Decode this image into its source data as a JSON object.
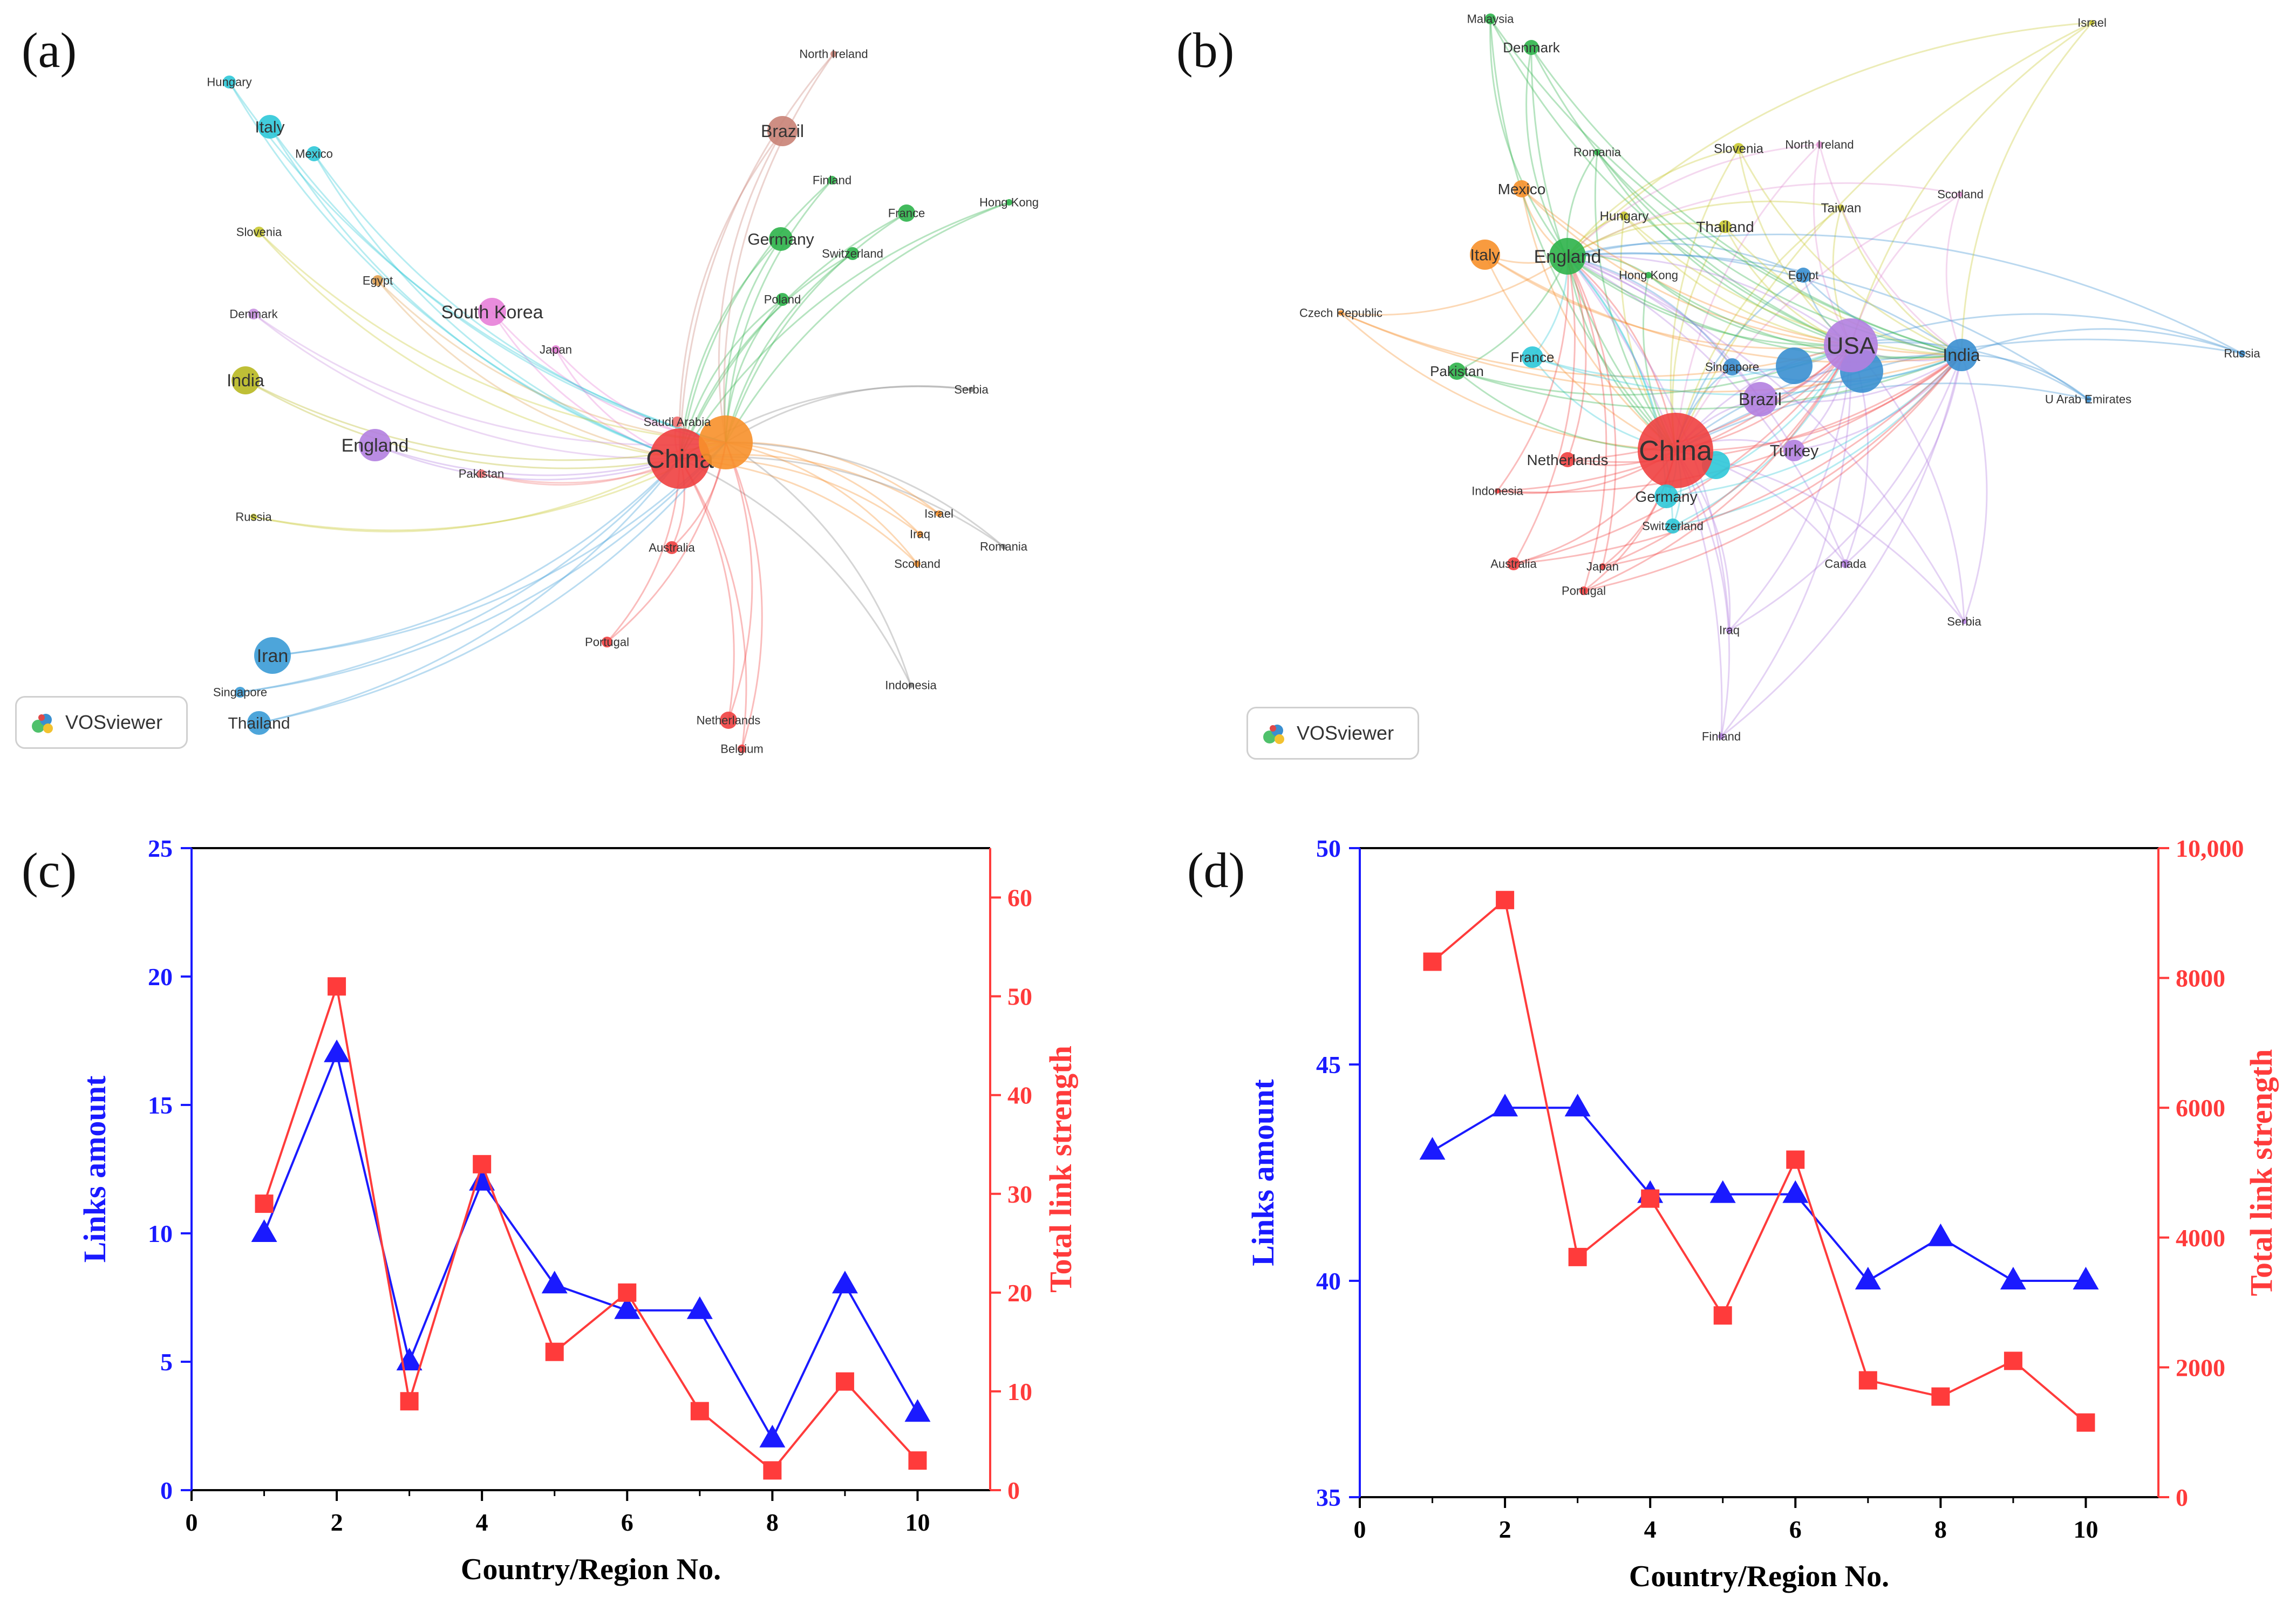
{
  "panels": {
    "a": {
      "label": "(a)"
    },
    "b": {
      "label": "(b)"
    },
    "c": {
      "label": "(c)"
    },
    "d": {
      "label": "(d)"
    }
  },
  "vosviewer_badge": "VOSviewer",
  "network_a": {
    "nodes": [
      {
        "label": "China",
        "color": "#f04040",
        "big": true
      },
      {
        "label": "",
        "color": "#f7902a",
        "big": true
      },
      {
        "label": "South Korea",
        "color": "#e77fd8"
      },
      {
        "label": "England",
        "color": "#b27fe0"
      },
      {
        "label": "India",
        "color": "#b8b820"
      },
      {
        "label": "Iran",
        "color": "#3a9bd6"
      },
      {
        "label": "Thailand",
        "color": "#3a9bd6"
      },
      {
        "label": "Brazil",
        "color": "#c98275"
      },
      {
        "label": "Germany",
        "color": "#2db24a"
      },
      {
        "label": "Italy",
        "color": "#2ec8d8"
      },
      {
        "label": "Mexico",
        "color": "#2ec8d8"
      },
      {
        "label": "Hungary",
        "color": "#2ec8d8"
      },
      {
        "label": "Slovenia",
        "color": "#c8c830"
      },
      {
        "label": "Denmark",
        "color": "#c890e0"
      },
      {
        "label": "Egypt",
        "color": "#e0a050"
      },
      {
        "label": "Russia",
        "color": "#c8c830"
      },
      {
        "label": "Singapore",
        "color": "#3a9bd6"
      },
      {
        "label": "Pakistan",
        "color": "#f07070"
      },
      {
        "label": "Japan",
        "color": "#e77fd8"
      },
      {
        "label": "Saudi Arabia",
        "color": "#f07070"
      },
      {
        "label": "Australia",
        "color": "#f04040"
      },
      {
        "label": "Portugal",
        "color": "#f04040"
      },
      {
        "label": "Netherlands",
        "color": "#f04040"
      },
      {
        "label": "Belgium",
        "color": "#f04040"
      },
      {
        "label": "North Ireland",
        "color": "#c98275"
      },
      {
        "label": "Finland",
        "color": "#2db24a"
      },
      {
        "label": "France",
        "color": "#2db24a"
      },
      {
        "label": "Switzerland",
        "color": "#2db24a"
      },
      {
        "label": "Poland",
        "color": "#2db24a"
      },
      {
        "label": "Hong Kong",
        "color": "#2db24a"
      },
      {
        "label": "Serbia",
        "color": "#888888"
      },
      {
        "label": "Israel",
        "color": "#f7902a"
      },
      {
        "label": "Iraq",
        "color": "#f7902a"
      },
      {
        "label": "Scotland",
        "color": "#f7902a"
      },
      {
        "label": "Romania",
        "color": "#888888"
      },
      {
        "label": "Indonesia",
        "color": "#888888"
      }
    ]
  },
  "network_b": {
    "nodes": [
      {
        "label": "China",
        "color": "#f04040",
        "big": true
      },
      {
        "label": "USA",
        "color": "#b27fe0",
        "big": true
      },
      {
        "label": "England",
        "color": "#2db24a"
      },
      {
        "label": "India",
        "color": "#3a8fd0"
      },
      {
        "label": "Brazil",
        "color": "#b27fe0"
      },
      {
        "label": "Italy",
        "color": "#f7902a"
      },
      {
        "label": "Mexico",
        "color": "#f7902a"
      },
      {
        "label": "Malaysia",
        "color": "#2db24a"
      },
      {
        "label": "Denmark",
        "color": "#2db24a"
      },
      {
        "label": "Israel",
        "color": "#c8c830"
      },
      {
        "label": "Romania",
        "color": "#2db24a"
      },
      {
        "label": "Slovenia",
        "color": "#c8c830"
      },
      {
        "label": "North Ireland",
        "color": "#e090d0"
      },
      {
        "label": "Scotland",
        "color": "#e090d0"
      },
      {
        "label": "Hungary",
        "color": "#c8c830"
      },
      {
        "label": "Thailand",
        "color": "#c8c830"
      },
      {
        "label": "Taiwan",
        "color": "#c8c830"
      },
      {
        "label": "Hong Kong",
        "color": "#2db24a"
      },
      {
        "label": "Egypt",
        "color": "#3a8fd0"
      },
      {
        "label": "Czech Republic",
        "color": "#f7902a"
      },
      {
        "label": "Pakistan",
        "color": "#2db24a"
      },
      {
        "label": "France",
        "color": "#2ec8d8"
      },
      {
        "label": "Singapore",
        "color": "#3a8fd0"
      },
      {
        "label": "Russia",
        "color": "#3a8fd0"
      },
      {
        "label": "U Arab Emirates",
        "color": "#3a8fd0"
      },
      {
        "label": "Turkey",
        "color": "#b27fe0"
      },
      {
        "label": "Netherlands",
        "color": "#f04040"
      },
      {
        "label": "Indonesia",
        "color": "#f04040"
      },
      {
        "label": "Germany",
        "color": "#2ec8d8"
      },
      {
        "label": "Switzerland",
        "color": "#2ec8d8"
      },
      {
        "label": "Australia",
        "color": "#f04040"
      },
      {
        "label": "Japan",
        "color": "#f04040"
      },
      {
        "label": "Portugal",
        "color": "#f04040"
      },
      {
        "label": "Canada",
        "color": "#b27fe0"
      },
      {
        "label": "Iraq",
        "color": "#b27fe0"
      },
      {
        "label": "Serbia",
        "color": "#b27fe0"
      },
      {
        "label": "Finland",
        "color": "#b27fe0"
      }
    ]
  },
  "chart_data": [
    {
      "panel": "(c)",
      "type": "line",
      "xlabel": "Country/Region No.",
      "ylabel": "Links amount",
      "y2label": "Total link strength",
      "xlim": [
        0,
        11
      ],
      "xticks": [
        0,
        2,
        4,
        6,
        8,
        10
      ],
      "ylim": [
        0,
        25
      ],
      "yticks": [
        0,
        5,
        10,
        15,
        20,
        25
      ],
      "y2lim": [
        0,
        65
      ],
      "y2ticks": [
        0,
        10,
        20,
        30,
        40,
        50,
        60
      ],
      "x": [
        1,
        2,
        3,
        4,
        5,
        6,
        7,
        8,
        9,
        10
      ],
      "series": [
        {
          "axis": "left",
          "color": "#1a1aff",
          "marker": "triangle",
          "values": [
            10,
            17,
            5,
            12,
            8,
            7,
            7,
            2,
            8,
            3
          ]
        },
        {
          "axis": "right",
          "color": "#ff3b3b",
          "marker": "square",
          "values": [
            29,
            51,
            9,
            33,
            14,
            20,
            8,
            2,
            11,
            3
          ]
        }
      ]
    },
    {
      "panel": "(d)",
      "type": "line",
      "xlabel": "Country/Region No.",
      "ylabel": "Links amount",
      "y2label": "Total link strength",
      "xlim": [
        0,
        11
      ],
      "xticks": [
        0,
        2,
        4,
        6,
        8,
        10
      ],
      "ylim": [
        35,
        50
      ],
      "yticks": [
        35,
        40,
        45,
        50
      ],
      "y2lim": [
        0,
        10000
      ],
      "y2ticks": [
        0,
        2000,
        4000,
        6000,
        8000,
        10000
      ],
      "y2ticklabels": [
        "0",
        "2000",
        "4000",
        "6000",
        "8000",
        "10,000"
      ],
      "x": [
        1,
        2,
        3,
        4,
        5,
        6,
        7,
        8,
        9,
        10
      ],
      "series": [
        {
          "axis": "left",
          "color": "#1a1aff",
          "marker": "triangle",
          "values": [
            43,
            44,
            44,
            42,
            42,
            42,
            40,
            41,
            40,
            40
          ]
        },
        {
          "axis": "right",
          "color": "#ff3b3b",
          "marker": "square",
          "values": [
            8250,
            9200,
            3700,
            4600,
            2800,
            5200,
            1800,
            1550,
            2100,
            1150
          ]
        }
      ]
    }
  ]
}
